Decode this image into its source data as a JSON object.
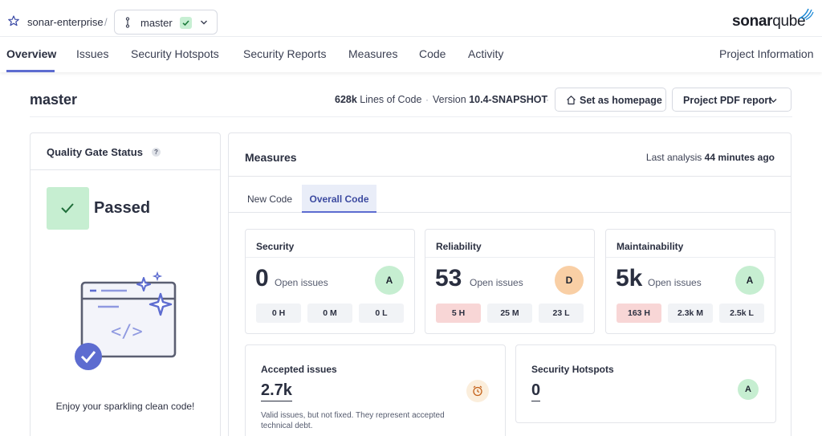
{
  "topbar": {
    "project_name": "sonar-enterprise",
    "separator": "/",
    "branch": "master",
    "logo_bold": "sonar",
    "logo_light": "qube"
  },
  "nav": {
    "items": [
      {
        "label": "Overview",
        "active": true
      },
      {
        "label": "Issues"
      },
      {
        "label": "Security Hotspots"
      },
      {
        "label": "Security Reports"
      },
      {
        "label": "Measures"
      },
      {
        "label": "Code"
      },
      {
        "label": "Activity"
      }
    ],
    "project_information": "Project Information"
  },
  "header": {
    "title": "master",
    "loc_value": "628k",
    "loc_label": "Lines of Code",
    "dot": "·",
    "version_label": "Version",
    "version_value": "10.4-SNAPSHOT",
    "set_homepage": "Set as homepage",
    "pdf_report": "Project PDF report"
  },
  "quality_gate": {
    "title": "Quality Gate Status",
    "help": "?",
    "status": "Passed",
    "message": "Enjoy your sparkling clean code!"
  },
  "measures": {
    "title": "Measures",
    "last_analysis_label": "Last analysis",
    "last_analysis_value": "44 minutes ago",
    "tabs": [
      {
        "label": "New Code",
        "active": false
      },
      {
        "label": "Overall Code",
        "active": true
      }
    ],
    "cards": [
      {
        "name": "Security",
        "value": "0",
        "open_label": "Open issues",
        "grade": "A",
        "severities": [
          {
            "label": "0 H"
          },
          {
            "label": "0 M"
          },
          {
            "label": "0 L"
          }
        ]
      },
      {
        "name": "Reliability",
        "value": "53",
        "open_label": "Open issues",
        "grade": "D",
        "severities": [
          {
            "label": "5 H"
          },
          {
            "label": "25 M"
          },
          {
            "label": "23 L"
          }
        ]
      },
      {
        "name": "Maintainability",
        "value": "5k",
        "open_label": "Open issues",
        "grade": "A",
        "severities": [
          {
            "label": "163 H"
          },
          {
            "label": "2.3k M"
          },
          {
            "label": "2.5k L"
          }
        ]
      }
    ],
    "accepted": {
      "title": "Accepted issues",
      "value": "2.7k",
      "description": "Valid issues, but not fixed. They represent accepted technical debt."
    },
    "hotspots": {
      "title": "Security Hotspots",
      "value": "0",
      "grade": "A"
    }
  },
  "colors": {
    "accent": "#5d6cd0",
    "grade_a": "#c6eed1",
    "grade_d": "#f9cfa5",
    "high_severity": "#f8d6d6"
  }
}
